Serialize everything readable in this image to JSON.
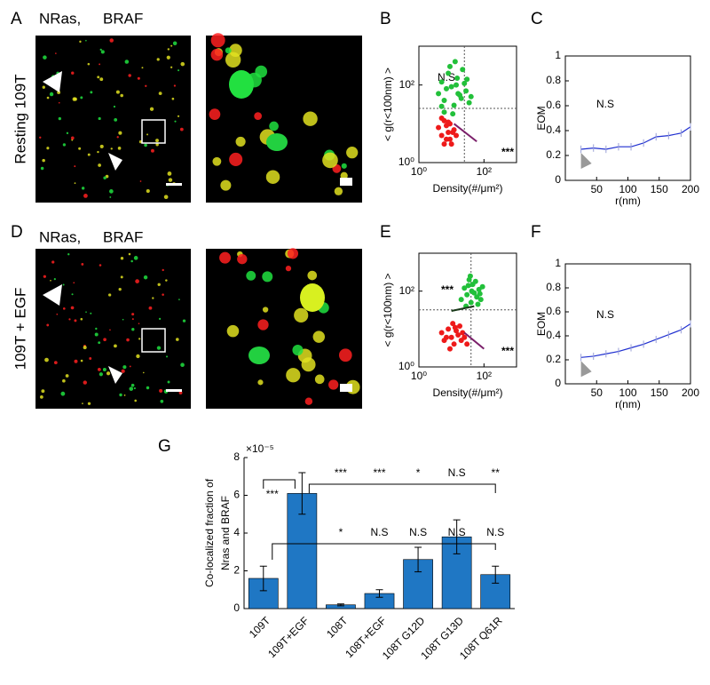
{
  "panel_labels": [
    "A",
    "B",
    "C",
    "D",
    "E",
    "F",
    "G"
  ],
  "images": [
    {
      "stain": [
        "NRas,",
        "BRAF"
      ],
      "side_label": "Resting 109T"
    },
    {
      "stain": [
        "NRas,",
        "BRAF"
      ],
      "side_label": "109T + EGF"
    }
  ],
  "chart_data": [
    {
      "type": "scatter",
      "xlabel": "Density(#/μm²)",
      "ylabel": "< g(r<100nm) >",
      "log_x": true,
      "log_y": true,
      "xlim": [
        1,
        1000
      ],
      "ylim": [
        1,
        1000
      ],
      "xticks": [
        {
          "value": 1,
          "label": "10⁰"
        },
        {
          "value": 100,
          "label": "10²"
        }
      ],
      "yticks": [
        {
          "value": 1,
          "label": "10⁰"
        },
        {
          "value": 100,
          "label": "10²"
        }
      ],
      "ref_lines": {
        "x": 25,
        "y": 25
      },
      "series": [
        {
          "color": "#22c03a",
          "x": [
            4,
            5,
            6,
            8,
            10,
            12,
            15,
            18,
            22,
            28,
            35,
            6,
            9,
            14,
            20,
            30,
            7,
            11,
            16,
            25,
            40,
            5,
            13
          ],
          "values": [
            60,
            120,
            40,
            200,
            90,
            30,
            150,
            55,
            250,
            70,
            35,
            20,
            300,
            100,
            45,
            140,
            80,
            18,
            60,
            110,
            50,
            28,
            400
          ]
        },
        {
          "color": "#ee1a1a",
          "x": [
            4,
            5,
            6,
            7,
            8,
            9,
            10,
            12,
            14,
            5,
            7,
            9,
            11,
            6,
            8
          ],
          "values": [
            8,
            5,
            12,
            4,
            6,
            10,
            3,
            7,
            5,
            14,
            9,
            4,
            6,
            3,
            11
          ]
        }
      ],
      "lines": [
        {
          "color": "#7b1f6a",
          "x": [
            12,
            60
          ],
          "values": [
            10,
            3.5
          ]
        }
      ],
      "annotations": [
        {
          "text": "N.S",
          "color": "#1f4d2b"
        },
        {
          "text": "***",
          "color": "#7b1f6a"
        }
      ]
    },
    {
      "type": "line",
      "xlabel": "r(nm)",
      "ylabel": "EOM",
      "xlim": [
        0,
        200
      ],
      "ylim": [
        0,
        1
      ],
      "xticks": [
        50,
        100,
        150,
        200
      ],
      "yticks": [
        0,
        0.2,
        0.4,
        0.6,
        0.8,
        1
      ],
      "x": [
        25,
        45,
        65,
        85,
        105,
        125,
        145,
        165,
        185,
        200
      ],
      "series": [
        {
          "color": "#1f2fd0",
          "values": [
            0.25,
            0.26,
            0.25,
            0.27,
            0.27,
            0.3,
            0.35,
            0.36,
            0.38,
            0.43
          ],
          "errors": [
            0.03,
            0.03,
            0.03,
            0.03,
            0.03,
            0.03,
            0.03,
            0.03,
            0.03,
            0.03
          ]
        }
      ],
      "annotations": [
        {
          "text": "N.S",
          "color": "#000000"
        }
      ]
    },
    {
      "type": "scatter",
      "xlabel": "Density(#/μm²)",
      "ylabel": "< g(r<100nm) >",
      "log_x": true,
      "log_y": true,
      "xlim": [
        1,
        1000
      ],
      "ylim": [
        1,
        1000
      ],
      "xticks": [
        {
          "value": 1,
          "label": "10⁰"
        },
        {
          "value": 100,
          "label": "10²"
        }
      ],
      "yticks": [
        {
          "value": 1,
          "label": "10⁰"
        },
        {
          "value": 100,
          "label": "10²"
        }
      ],
      "ref_lines": {
        "x": 40,
        "y": 32
      },
      "series": [
        {
          "color": "#22c03a",
          "x": [
            20,
            25,
            30,
            35,
            40,
            45,
            50,
            60,
            70,
            80,
            90,
            28,
            38,
            55,
            65,
            42,
            33,
            75
          ],
          "values": [
            60,
            120,
            80,
            200,
            50,
            150,
            90,
            70,
            110,
            60,
            130,
            40,
            250,
            180,
            45,
            100,
            140,
            85
          ]
        },
        {
          "color": "#ee1a1a",
          "x": [
            5,
            6,
            8,
            10,
            12,
            14,
            16,
            18,
            20,
            25,
            30,
            9,
            13,
            22,
            7,
            11
          ],
          "values": [
            8,
            5,
            10,
            6,
            4,
            9,
            7,
            12,
            5,
            6,
            4,
            3,
            11,
            8,
            6,
            14
          ]
        }
      ],
      "lines": [
        {
          "color": "#7b1f6a",
          "x": [
            25,
            100
          ],
          "values": [
            8,
            3
          ]
        },
        {
          "color": "#1a3a1a",
          "x": [
            10,
            50
          ],
          "values": [
            30,
            40
          ]
        }
      ],
      "annotations": [
        {
          "text": "***",
          "color": "#1f4d2b"
        },
        {
          "text": "***",
          "color": "#7b1f6a"
        }
      ]
    },
    {
      "type": "line",
      "xlabel": "r(nm)",
      "ylabel": "EOM",
      "xlim": [
        0,
        200
      ],
      "ylim": [
        0,
        1
      ],
      "xticks": [
        50,
        100,
        150,
        200
      ],
      "yticks": [
        0,
        0.2,
        0.4,
        0.6,
        0.8,
        1
      ],
      "x": [
        25,
        45,
        65,
        85,
        105,
        125,
        145,
        165,
        185,
        200
      ],
      "series": [
        {
          "color": "#1f2fd0",
          "values": [
            0.22,
            0.23,
            0.25,
            0.27,
            0.3,
            0.33,
            0.37,
            0.41,
            0.45,
            0.5
          ],
          "errors": [
            0.03,
            0.03,
            0.03,
            0.03,
            0.03,
            0.03,
            0.03,
            0.03,
            0.03,
            0.03
          ]
        }
      ],
      "annotations": [
        {
          "text": "N.S",
          "color": "#000000"
        }
      ]
    },
    {
      "type": "bar",
      "ylabel": [
        "Co-localized fraction of",
        "Nras and BRAF"
      ],
      "exponent_label": "×10⁻⁵",
      "categories": [
        "109T",
        "109T+EGF",
        "108T",
        "108T+EGF",
        "108T G12D",
        "108T G13D",
        "108T Q61R"
      ],
      "values": [
        1.6,
        6.1,
        0.2,
        0.8,
        2.6,
        3.8,
        1.8
      ],
      "errors": [
        0.65,
        1.1,
        0.05,
        0.2,
        0.65,
        0.9,
        0.45
      ],
      "color": "#1f77c4",
      "ylim": [
        0,
        8
      ],
      "yticks": [
        0,
        2,
        4,
        6,
        8
      ],
      "significance": {
        "pair": "***",
        "vs_egf": [
          "***",
          "***",
          "*",
          "N.S",
          "**"
        ],
        "vs_base": [
          "*",
          "N.S",
          "N.S",
          "N.S",
          "N.S"
        ]
      }
    }
  ]
}
